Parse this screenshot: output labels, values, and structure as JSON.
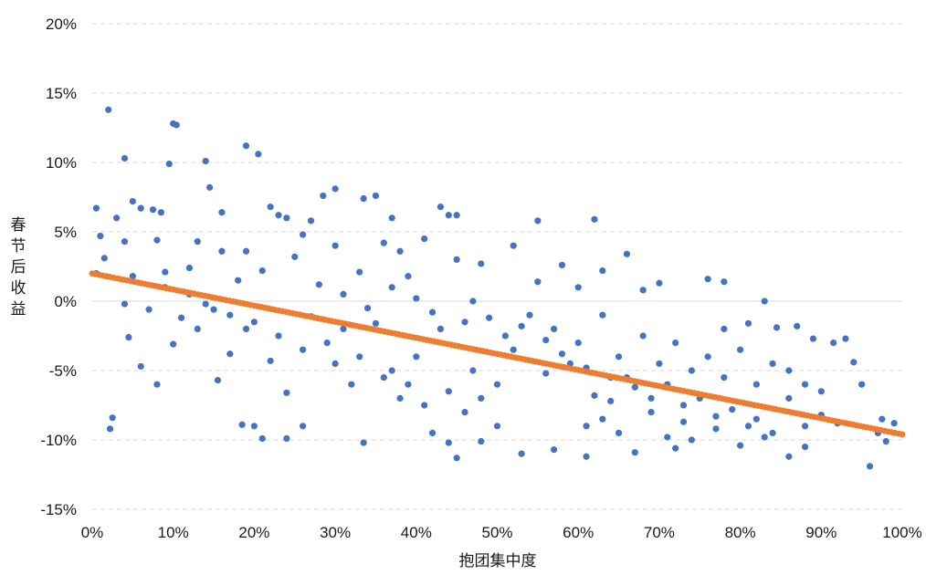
{
  "chart_data": {
    "type": "scatter",
    "xlabel": "抱团集中度",
    "ylabel": "春节后收益",
    "xlim": [
      0,
      1
    ],
    "ylim": [
      -0.15,
      0.2
    ],
    "x_ticks": [
      {
        "value": 0.0,
        "label": "0%"
      },
      {
        "value": 0.1,
        "label": "10%"
      },
      {
        "value": 0.2,
        "label": "20%"
      },
      {
        "value": 0.3,
        "label": "30%"
      },
      {
        "value": 0.4,
        "label": "40%"
      },
      {
        "value": 0.5,
        "label": "50%"
      },
      {
        "value": 0.6,
        "label": "60%"
      },
      {
        "value": 0.7,
        "label": "70%"
      },
      {
        "value": 0.8,
        "label": "80%"
      },
      {
        "value": 0.9,
        "label": "90%"
      },
      {
        "value": 1.0,
        "label": "100%"
      }
    ],
    "y_ticks": [
      {
        "value": 0.2,
        "label": "20%"
      },
      {
        "value": 0.15,
        "label": "15%"
      },
      {
        "value": 0.1,
        "label": "10%"
      },
      {
        "value": 0.05,
        "label": "5%"
      },
      {
        "value": 0.0,
        "label": "0%"
      },
      {
        "value": -0.05,
        "label": "-5%"
      },
      {
        "value": -0.1,
        "label": "-10%"
      },
      {
        "value": -0.15,
        "label": "-15%"
      }
    ],
    "grid": "horizontal dashed",
    "legend": "none",
    "series": [
      {
        "kind": "observations",
        "color": "#4472c4",
        "points": [
          [
            0.02,
            0.138
          ],
          [
            0.1,
            0.128
          ],
          [
            0.104,
            0.127
          ],
          [
            0.19,
            0.112
          ],
          [
            0.205,
            0.106
          ],
          [
            0.04,
            0.103
          ],
          [
            0.095,
            0.099
          ],
          [
            0.14,
            0.101
          ],
          [
            0.145,
            0.082
          ],
          [
            0.3,
            0.081
          ],
          [
            0.05,
            0.072
          ],
          [
            0.285,
            0.076
          ],
          [
            0.335,
            0.074
          ],
          [
            0.35,
            0.076
          ],
          [
            0.22,
            0.068
          ],
          [
            0.43,
            0.068
          ],
          [
            0.005,
            0.067
          ],
          [
            0.06,
            0.067
          ],
          [
            0.075,
            0.066
          ],
          [
            0.62,
            0.059
          ],
          [
            0.55,
            0.058
          ],
          [
            0.37,
            0.06
          ],
          [
            0.44,
            0.062
          ],
          [
            0.45,
            0.062
          ],
          [
            0.03,
            0.06
          ],
          [
            0.085,
            0.064
          ],
          [
            0.23,
            0.062
          ],
          [
            0.16,
            0.064
          ],
          [
            0.24,
            0.06
          ],
          [
            0.27,
            0.058
          ],
          [
            0.01,
            0.047
          ],
          [
            0.04,
            0.043
          ],
          [
            0.13,
            0.043
          ],
          [
            0.26,
            0.048
          ],
          [
            0.36,
            0.042
          ],
          [
            0.41,
            0.045
          ],
          [
            0.52,
            0.04
          ],
          [
            0.015,
            0.031
          ],
          [
            0.08,
            0.044
          ],
          [
            0.16,
            0.036
          ],
          [
            0.19,
            0.036
          ],
          [
            0.25,
            0.032
          ],
          [
            0.3,
            0.04
          ],
          [
            0.38,
            0.036
          ],
          [
            0.45,
            0.03
          ],
          [
            0.48,
            0.027
          ],
          [
            0.58,
            0.026
          ],
          [
            0.63,
            0.022
          ],
          [
            0.66,
            0.034
          ],
          [
            0.7,
            0.013
          ],
          [
            0.76,
            0.016
          ],
          [
            0.78,
            0.014
          ],
          [
            0.83,
            0.0
          ],
          [
            0.005,
            0.02
          ],
          [
            0.05,
            0.018
          ],
          [
            0.09,
            0.021
          ],
          [
            0.12,
            0.024
          ],
          [
            0.18,
            0.015
          ],
          [
            0.21,
            0.022
          ],
          [
            0.33,
            0.021
          ],
          [
            0.39,
            0.018
          ],
          [
            0.55,
            0.014
          ],
          [
            0.6,
            0.01
          ],
          [
            0.68,
            0.008
          ],
          [
            0.04,
            -0.002
          ],
          [
            0.07,
            -0.006
          ],
          [
            0.11,
            -0.012
          ],
          [
            0.15,
            -0.006
          ],
          [
            0.2,
            -0.015
          ],
          [
            0.27,
            -0.011
          ],
          [
            0.31,
            -0.02
          ],
          [
            0.35,
            -0.016
          ],
          [
            0.06,
            -0.047
          ],
          [
            0.045,
            -0.026
          ],
          [
            0.1,
            -0.031
          ],
          [
            0.13,
            -0.02
          ],
          [
            0.17,
            -0.038
          ],
          [
            0.22,
            -0.043
          ],
          [
            0.08,
            -0.06
          ],
          [
            0.155,
            -0.057
          ],
          [
            0.24,
            -0.066
          ],
          [
            0.2,
            -0.09
          ],
          [
            0.185,
            -0.089
          ],
          [
            0.26,
            -0.09
          ],
          [
            0.022,
            -0.092
          ],
          [
            0.025,
            -0.084
          ],
          [
            0.21,
            -0.099
          ],
          [
            0.24,
            -0.099
          ],
          [
            0.335,
            -0.102
          ],
          [
            0.44,
            -0.102
          ],
          [
            0.48,
            -0.101
          ],
          [
            0.57,
            -0.107
          ],
          [
            0.61,
            -0.112
          ],
          [
            0.45,
            -0.113
          ],
          [
            0.53,
            -0.11
          ],
          [
            0.67,
            -0.109
          ],
          [
            0.72,
            -0.106
          ],
          [
            0.8,
            -0.104
          ],
          [
            0.86,
            -0.112
          ],
          [
            0.88,
            -0.105
          ],
          [
            0.96,
            -0.119
          ],
          [
            0.98,
            -0.101
          ],
          [
            0.99,
            -0.088
          ],
          [
            0.975,
            -0.085
          ],
          [
            0.94,
            -0.044
          ],
          [
            0.93,
            -0.027
          ],
          [
            0.915,
            -0.03
          ],
          [
            0.89,
            -0.027
          ],
          [
            0.87,
            -0.018
          ],
          [
            0.845,
            -0.019
          ],
          [
            0.81,
            -0.016
          ],
          [
            0.78,
            -0.02
          ],
          [
            0.42,
            -0.095
          ],
          [
            0.5,
            -0.09
          ],
          [
            0.4,
            -0.04
          ],
          [
            0.47,
            -0.05
          ],
          [
            0.52,
            -0.035
          ],
          [
            0.56,
            -0.052
          ],
          [
            0.59,
            -0.045
          ],
          [
            0.62,
            -0.068
          ],
          [
            0.64,
            -0.072
          ],
          [
            0.66,
            -0.055
          ],
          [
            0.69,
            -0.08
          ],
          [
            0.71,
            -0.06
          ],
          [
            0.73,
            -0.087
          ],
          [
            0.75,
            -0.07
          ],
          [
            0.77,
            -0.092
          ],
          [
            0.79,
            -0.078
          ],
          [
            0.82,
            -0.085
          ],
          [
            0.84,
            -0.095
          ],
          [
            0.86,
            -0.07
          ],
          [
            0.88,
            -0.09
          ],
          [
            0.9,
            -0.082
          ],
          [
            0.92,
            -0.088
          ],
          [
            0.95,
            -0.06
          ],
          [
            0.97,
            -0.095
          ],
          [
            0.36,
            -0.055
          ],
          [
            0.38,
            -0.07
          ],
          [
            0.33,
            -0.04
          ],
          [
            0.29,
            -0.03
          ],
          [
            0.43,
            -0.02
          ],
          [
            0.46,
            -0.015
          ],
          [
            0.51,
            -0.025
          ],
          [
            0.54,
            -0.01
          ],
          [
            0.57,
            -0.02
          ],
          [
            0.6,
            -0.03
          ],
          [
            0.63,
            -0.01
          ],
          [
            0.65,
            -0.04
          ],
          [
            0.68,
            -0.025
          ],
          [
            0.7,
            -0.045
          ],
          [
            0.72,
            -0.03
          ],
          [
            0.74,
            -0.05
          ],
          [
            0.76,
            -0.04
          ],
          [
            0.78,
            -0.055
          ],
          [
            0.8,
            -0.035
          ],
          [
            0.82,
            -0.06
          ],
          [
            0.84,
            -0.045
          ],
          [
            0.86,
            -0.05
          ],
          [
            0.88,
            -0.06
          ],
          [
            0.9,
            -0.065
          ],
          [
            0.28,
            0.012
          ],
          [
            0.31,
            0.005
          ],
          [
            0.34,
            -0.005
          ],
          [
            0.37,
            0.01
          ],
          [
            0.4,
            0.002
          ],
          [
            0.42,
            -0.008
          ],
          [
            0.47,
            0.0
          ],
          [
            0.49,
            -0.012
          ],
          [
            0.53,
            -0.018
          ],
          [
            0.56,
            -0.028
          ],
          [
            0.58,
            -0.038
          ],
          [
            0.61,
            -0.048
          ],
          [
            0.64,
            -0.055
          ],
          [
            0.67,
            -0.062
          ],
          [
            0.69,
            -0.07
          ],
          [
            0.73,
            -0.075
          ],
          [
            0.61,
            -0.09
          ],
          [
            0.63,
            -0.085
          ],
          [
            0.65,
            -0.095
          ],
          [
            0.71,
            -0.098
          ],
          [
            0.74,
            -0.1
          ],
          [
            0.77,
            -0.083
          ],
          [
            0.81,
            -0.09
          ],
          [
            0.83,
            -0.098
          ],
          [
            0.5,
            -0.06
          ],
          [
            0.48,
            -0.07
          ],
          [
            0.46,
            -0.08
          ],
          [
            0.44,
            -0.065
          ],
          [
            0.41,
            -0.075
          ],
          [
            0.39,
            -0.06
          ],
          [
            0.37,
            -0.05
          ],
          [
            0.32,
            -0.06
          ],
          [
            0.3,
            -0.045
          ],
          [
            0.26,
            -0.035
          ],
          [
            0.23,
            -0.025
          ],
          [
            0.19,
            -0.02
          ],
          [
            0.17,
            -0.01
          ],
          [
            0.14,
            -0.002
          ],
          [
            0.12,
            0.005
          ],
          [
            0.09,
            0.01
          ]
        ]
      },
      {
        "kind": "fitted-line",
        "color": "#ed7d31",
        "intercept": 0.02,
        "slope": -0.116,
        "x_start": 0.0,
        "x_end": 1.0
      }
    ]
  }
}
